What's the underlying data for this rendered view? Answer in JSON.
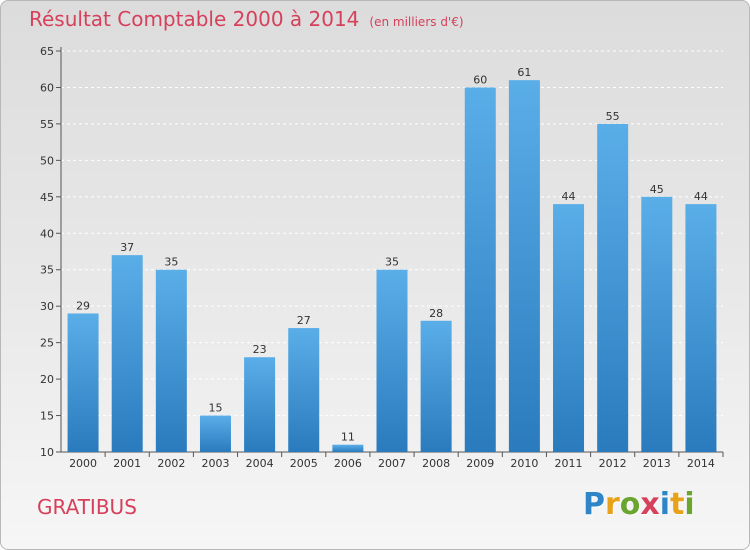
{
  "header": {
    "title": "Résultat Comptable 2000 à 2014",
    "subtitle": "(en milliers d'€)"
  },
  "footer": {
    "town": "GRATIBUS",
    "logo_text": "Proxiti",
    "logo_colors": [
      "#2e86c8",
      "#e8a21a",
      "#6aa52f",
      "#d6405b",
      "#2e86c8",
      "#e8a21a",
      "#6aa52f"
    ]
  },
  "colors": {
    "bar_top": "#5aaee8",
    "bar_bottom": "#2a7bbd",
    "title": "#d6405b"
  },
  "chart_data": {
    "type": "bar",
    "title": "Résultat Comptable 2000 à 2014",
    "subtitle": "(en milliers d'€)",
    "xlabel": "",
    "ylabel": "",
    "ylim": [
      10,
      65
    ],
    "yticks": [
      10,
      15,
      20,
      25,
      30,
      35,
      40,
      45,
      50,
      55,
      60,
      65
    ],
    "grid": true,
    "categories": [
      "2000",
      "2001",
      "2002",
      "2003",
      "2004",
      "2005",
      "2006",
      "2007",
      "2008",
      "2009",
      "2010",
      "2011",
      "2012",
      "2013",
      "2014"
    ],
    "values": [
      29,
      37,
      35,
      15,
      23,
      27,
      11,
      35,
      28,
      60,
      61,
      44,
      55,
      45,
      44
    ]
  }
}
